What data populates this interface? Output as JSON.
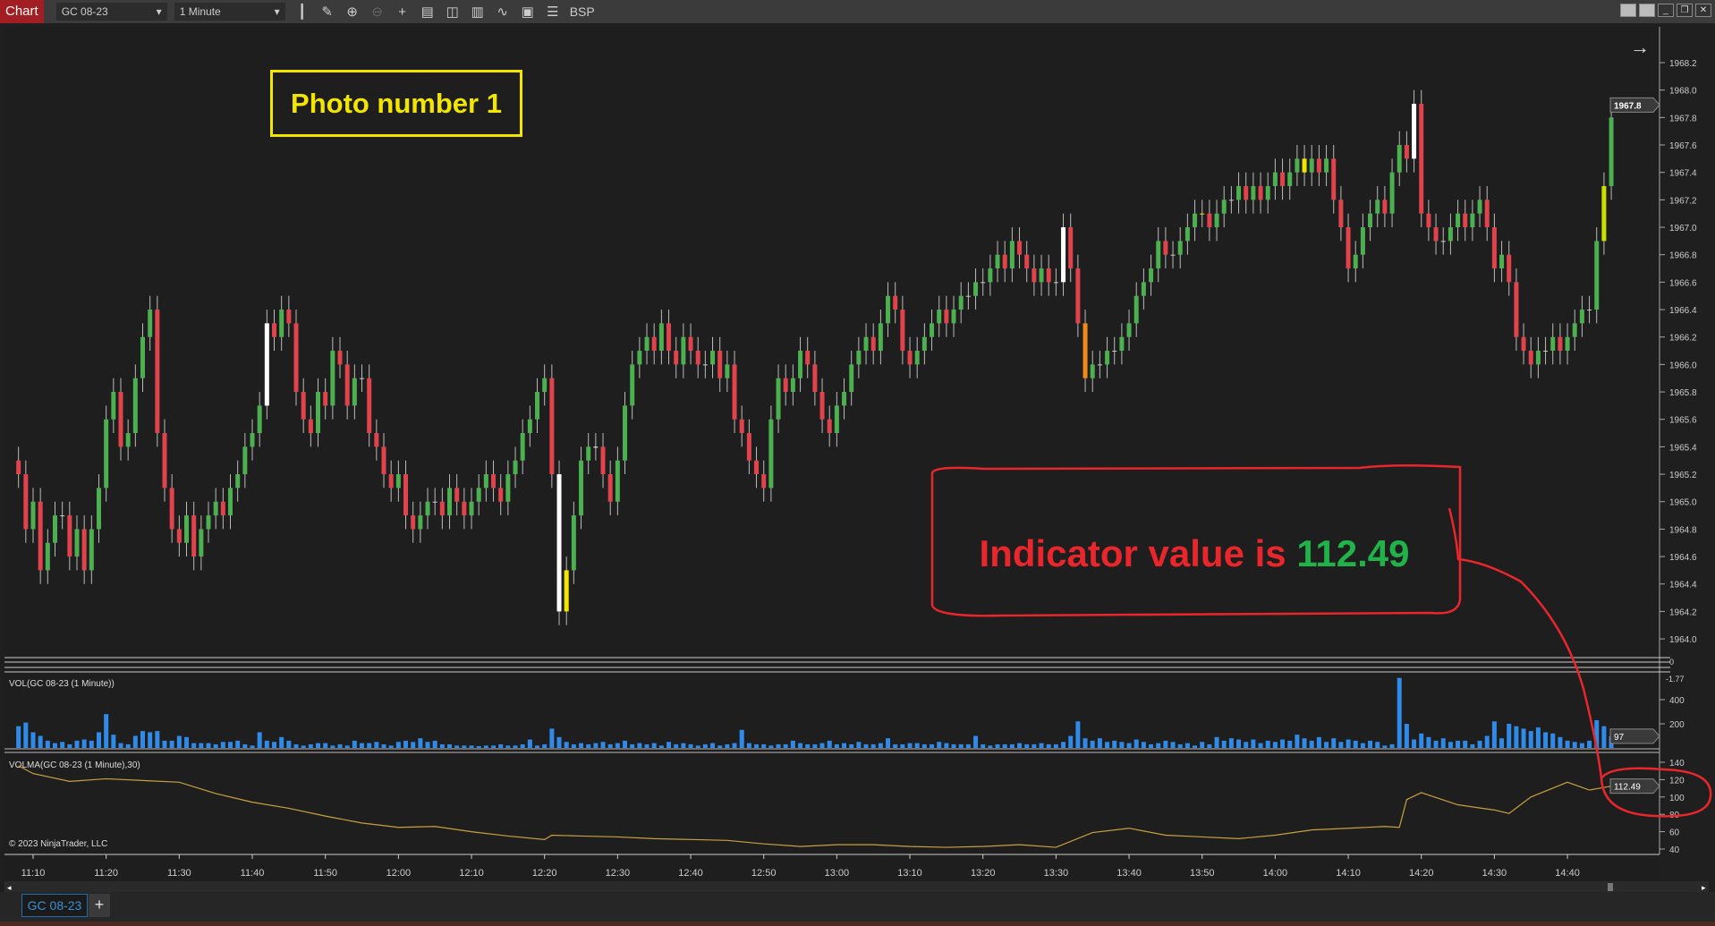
{
  "toolbar": {
    "chart_label": "Chart",
    "instrument": "GC 08-23",
    "interval": "1 Minute",
    "bsp_label": "BSP",
    "icons": [
      "bar-type-icon",
      "drawing-tool-icon",
      "zoom-in-icon",
      "zoom-out-icon",
      "crosshair-icon",
      "data-box-icon",
      "chart-trader-icon",
      "indicators-icon",
      "strategies-icon",
      "templates-icon",
      "properties-icon"
    ]
  },
  "window_buttons": [
    "tile-icon",
    "tile2-icon",
    "minimize-icon",
    "restore-icon",
    "close-icon"
  ],
  "annotations": {
    "photo_label": "Photo number 1",
    "indicator_prefix": "Indicator value is",
    "indicator_value": "112.49",
    "annotation_color": "#e8262c",
    "value_color": "#21b24a",
    "box_color": "#f2e600"
  },
  "panels": {
    "vol_label": "VOL(GC 08-23 (1 Minute))",
    "volma_label": "VOLMA(GC 08-23 (1 Minute),30)",
    "copyright": "© 2023 NinjaTrader, LLC",
    "sep_values": [
      "0",
      "-1.77"
    ]
  },
  "tabs": {
    "active": "GC 08-23",
    "add": "+"
  },
  "chart_data": [
    {
      "type": "candlestick",
      "name": "GC 08-23",
      "start_time": "11:08",
      "interval_minutes": 1,
      "ylim": [
        1964.0,
        1968.2
      ],
      "y_ticks": [
        "1968.2",
        "1968.0",
        "1967.8",
        "1967.6",
        "1967.4",
        "1967.2",
        "1967.0",
        "1966.8",
        "1966.6",
        "1966.4",
        "1966.2",
        "1966.0",
        "1965.8",
        "1965.6",
        "1965.4",
        "1965.2",
        "1965.0",
        "1964.8",
        "1964.6",
        "1964.4",
        "1964.2",
        "1964.0"
      ],
      "last_price": "1967.8",
      "up_color": "#4caf50",
      "down_color": "#e0434b",
      "special_bar_colors": {
        "11:42": "#ffffff",
        "12:22": "#ffffff",
        "12:23": "#f2e600",
        "12:27": "#ffffff",
        "13:31": "#ffffff",
        "13:34": "#f08a1c",
        "13:50": "#f2e600",
        "14:04": "#f2e600",
        "14:19": "#ffffff",
        "14:45": "#c8e000"
      },
      "close": [
        1965.2,
        1964.8,
        1965.0,
        1964.5,
        1964.7,
        1964.9,
        1964.9,
        1964.6,
        1964.8,
        1964.5,
        1964.8,
        1965.1,
        1965.6,
        1965.8,
        1965.4,
        1965.5,
        1965.9,
        1966.2,
        1966.4,
        1965.5,
        1965.1,
        1964.8,
        1964.7,
        1964.9,
        1964.6,
        1964.8,
        1964.9,
        1965.0,
        1964.9,
        1965.1,
        1965.2,
        1965.4,
        1965.5,
        1965.7,
        1966.3,
        1966.2,
        1966.4,
        1966.3,
        1965.8,
        1965.6,
        1965.5,
        1965.8,
        1965.7,
        1966.1,
        1966.0,
        1965.7,
        1965.9,
        1965.9,
        1965.5,
        1965.4,
        1965.2,
        1965.1,
        1965.2,
        1964.9,
        1964.8,
        1964.9,
        1965.0,
        1965.0,
        1964.9,
        1965.1,
        1965.0,
        1964.9,
        1965.0,
        1965.1,
        1965.2,
        1965.1,
        1965.0,
        1965.2,
        1965.3,
        1965.5,
        1965.6,
        1965.8,
        1965.9,
        1965.2,
        1964.2,
        1964.5,
        1964.9,
        1965.3,
        1965.4,
        1965.4,
        1965.2,
        1965.0,
        1965.3,
        1965.7,
        1966.0,
        1966.1,
        1966.2,
        1966.1,
        1966.3,
        1966.1,
        1966.0,
        1966.2,
        1966.1,
        1966.0,
        1966.0,
        1966.1,
        1965.9,
        1966.0,
        1965.6,
        1965.5,
        1965.3,
        1965.2,
        1965.1,
        1965.6,
        1965.9,
        1965.8,
        1965.9,
        1966.1,
        1966.0,
        1965.8,
        1965.6,
        1965.5,
        1965.7,
        1965.8,
        1966.0,
        1966.1,
        1966.2,
        1966.1,
        1966.3,
        1966.5,
        1966.4,
        1966.1,
        1966.0,
        1966.1,
        1966.2,
        1966.3,
        1966.4,
        1966.3,
        1966.4,
        1966.5,
        1966.5,
        1966.6,
        1966.6,
        1966.7,
        1966.8,
        1966.7,
        1966.9,
        1966.8,
        1966.7,
        1966.6,
        1966.7,
        1966.6,
        1966.6,
        1967.0,
        1966.7,
        1966.3,
        1965.9,
        1966.0,
        1966.0,
        1966.1,
        1966.1,
        1966.2,
        1966.3,
        1966.5,
        1966.6,
        1966.7,
        1966.9,
        1966.8,
        1966.8,
        1966.9,
        1967.0,
        1967.1,
        1967.1,
        1967.0,
        1967.1,
        1967.2,
        1967.2,
        1967.3,
        1967.2,
        1967.3,
        1967.2,
        1967.3,
        1967.4,
        1967.3,
        1967.4,
        1967.5,
        1967.4,
        1967.5,
        1967.4,
        1967.5,
        1967.2,
        1967.0,
        1966.7,
        1966.8,
        1967.0,
        1967.1,
        1967.2,
        1967.1,
        1967.4,
        1967.6,
        1967.5,
        1967.9,
        1967.1,
        1967.0,
        1966.9,
        1966.9,
        1967.0,
        1967.1,
        1967.0,
        1967.1,
        1967.2,
        1967.0,
        1966.7,
        1966.8,
        1966.6,
        1966.2,
        1966.1,
        1966.0,
        1966.1,
        1966.1,
        1966.2,
        1966.1,
        1966.2,
        1966.3,
        1966.4,
        1966.4,
        1966.9,
        1967.3,
        1967.8
      ]
    },
    {
      "type": "bar",
      "name": "VOL",
      "color": "#2f8ae8",
      "ylim": [
        0,
        600
      ],
      "y_ticks": [
        "400",
        "200"
      ],
      "last_value": "97",
      "values": [
        180,
        210,
        130,
        100,
        60,
        40,
        50,
        30,
        60,
        70,
        60,
        130,
        280,
        110,
        40,
        30,
        100,
        140,
        130,
        140,
        60,
        60,
        100,
        90,
        40,
        40,
        40,
        30,
        50,
        50,
        60,
        30,
        20,
        130,
        60,
        50,
        90,
        60,
        30,
        20,
        30,
        40,
        40,
        20,
        30,
        20,
        60,
        40,
        40,
        50,
        30,
        20,
        50,
        60,
        50,
        80,
        50,
        60,
        30,
        30,
        20,
        20,
        20,
        15,
        20,
        20,
        30,
        20,
        20,
        30,
        70,
        20,
        30,
        160,
        90,
        50,
        30,
        40,
        30,
        40,
        50,
        30,
        40,
        60,
        30,
        40,
        30,
        40,
        20,
        50,
        30,
        40,
        30,
        20,
        30,
        40,
        20,
        30,
        40,
        150,
        40,
        30,
        30,
        20,
        30,
        30,
        60,
        40,
        30,
        30,
        40,
        60,
        30,
        40,
        30,
        50,
        30,
        30,
        40,
        80,
        30,
        30,
        40,
        40,
        30,
        30,
        50,
        40,
        30,
        30,
        30,
        100,
        30,
        20,
        30,
        30,
        30,
        40,
        30,
        30,
        40,
        30,
        30,
        50,
        100,
        220,
        80,
        60,
        80,
        50,
        60,
        50,
        40,
        70,
        50,
        30,
        40,
        60,
        50,
        30,
        40,
        20,
        50,
        30,
        90,
        60,
        80,
        70,
        50,
        70,
        40,
        60,
        50,
        70,
        60,
        110,
        80,
        60,
        90,
        50,
        80,
        50,
        70,
        60,
        40,
        60,
        50,
        20,
        30,
        580,
        200,
        70,
        120,
        90,
        60,
        80,
        50,
        60,
        60,
        30,
        60,
        100,
        220,
        80,
        200,
        180,
        160,
        140,
        170,
        130,
        120,
        90,
        60,
        50,
        40,
        60,
        230,
        180,
        97
      ]
    },
    {
      "type": "line",
      "name": "VOLMA",
      "color": "#c8a040",
      "ylim": [
        40,
        140
      ],
      "y_ticks": [
        "140",
        "120",
        "100",
        "80",
        "60",
        "40"
      ],
      "last_value": "112.49",
      "x": [
        "11:08",
        "11:10",
        "11:15",
        "11:20",
        "11:25",
        "11:30",
        "11:35",
        "11:40",
        "11:45",
        "11:50",
        "11:55",
        "12:00",
        "12:05",
        "12:10",
        "12:15",
        "12:20",
        "12:21",
        "12:25",
        "12:30",
        "12:35",
        "12:40",
        "12:45",
        "12:50",
        "12:55",
        "13:00",
        "13:05",
        "13:10",
        "13:15",
        "13:20",
        "13:25",
        "13:30",
        "13:35",
        "13:40",
        "13:45",
        "13:50",
        "13:55",
        "14:00",
        "14:05",
        "14:10",
        "14:15",
        "14:17",
        "14:18",
        "14:20",
        "14:25",
        "14:30",
        "14:32",
        "14:35",
        "14:40",
        "14:43",
        "14:46"
      ],
      "values": [
        136,
        127,
        118,
        121,
        119,
        117,
        104,
        94,
        87,
        78,
        70,
        65,
        66,
        60,
        55,
        51,
        56,
        55,
        54,
        52,
        51,
        50,
        46,
        43,
        45,
        45,
        43,
        42,
        43,
        45,
        42,
        59,
        64,
        56,
        54,
        52,
        56,
        62,
        64,
        66,
        65,
        97,
        105,
        91,
        85,
        81,
        100,
        117,
        108,
        112.49
      ]
    },
    {
      "type": "axis",
      "x_ticks": [
        "11:10",
        "11:20",
        "11:30",
        "11:40",
        "11:50",
        "12:00",
        "12:10",
        "12:20",
        "12:30",
        "12:40",
        "12:50",
        "13:00",
        "13:10",
        "13:20",
        "13:30",
        "13:40",
        "13:50",
        "14:00",
        "14:10",
        "14:20",
        "14:30",
        "14:40"
      ]
    }
  ]
}
